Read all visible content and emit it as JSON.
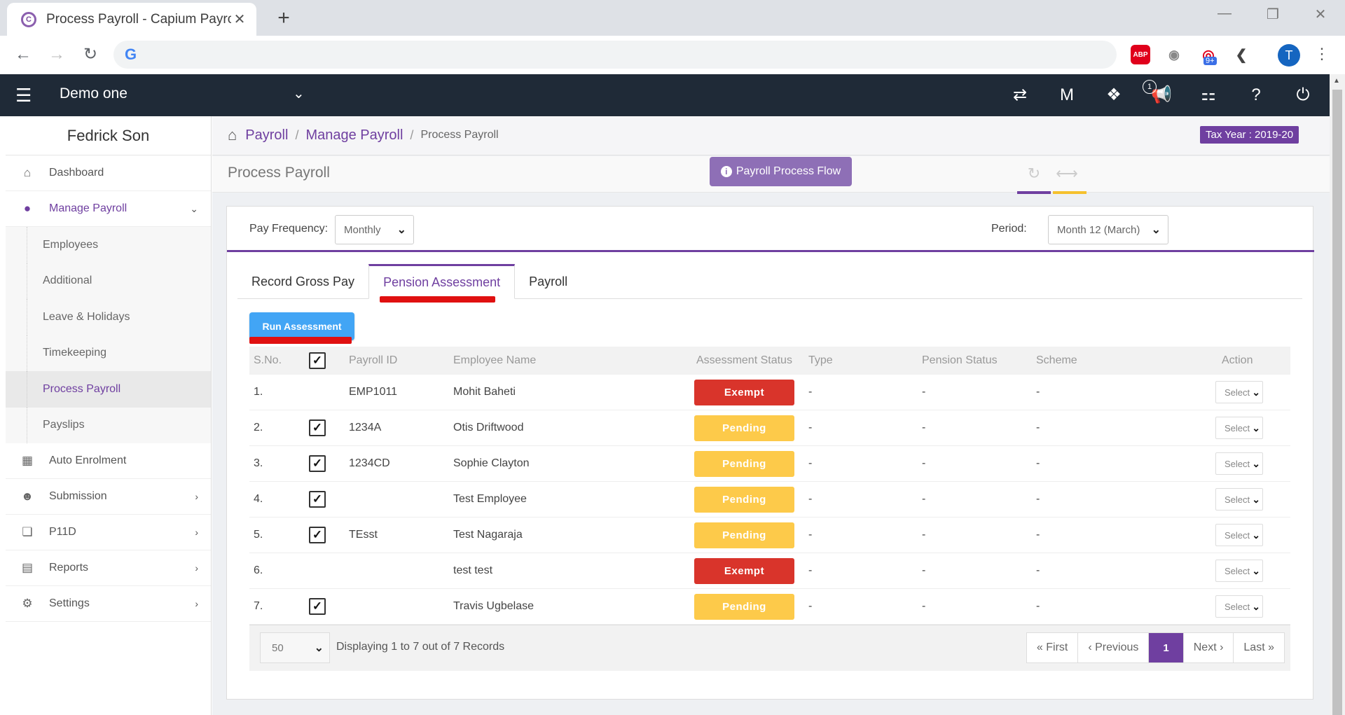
{
  "browser": {
    "tab_title": "Process Payroll - Capium Payroll",
    "tab_close": "✕",
    "new_tab": "+",
    "favicon_letter": "C",
    "google_letter": "G",
    "abp_label": "ABP",
    "ext_badge": "9+",
    "profile_initial": "T"
  },
  "header": {
    "company": "Demo one",
    "notification_count": "1"
  },
  "sidebar": {
    "user_name": "Fedrick Son",
    "items": [
      {
        "label": "Dashboard",
        "icon": "home-icon"
      },
      {
        "label": "Manage Payroll",
        "icon": "user-icon"
      },
      {
        "label": "Auto Enrolment",
        "icon": "grid-icon"
      },
      {
        "label": "Submission",
        "icon": "users-icon"
      },
      {
        "label": "P11D",
        "icon": "copy-icon"
      },
      {
        "label": "Reports",
        "icon": "report-icon"
      },
      {
        "label": "Settings",
        "icon": "gear-icon"
      }
    ],
    "sub_items": [
      "Employees",
      "Additional",
      "Leave & Holidays",
      "Timekeeping",
      "Process Payroll",
      "Payslips"
    ]
  },
  "breadcrumb": {
    "items": [
      "Payroll",
      "Manage Payroll"
    ],
    "current": "Process Payroll",
    "separator": "/"
  },
  "tax_year": "Tax Year : 2019-20",
  "page": {
    "title": "Process Payroll",
    "flow_button": "Payroll Process Flow"
  },
  "filters": {
    "pay_frequency_label": "Pay Frequency:",
    "pay_frequency_value": "Monthly",
    "period_label": "Period:",
    "period_value": "Month 12 (March)"
  },
  "tabs": [
    "Record Gross Pay",
    "Pension Assessment",
    "Payroll"
  ],
  "run_button": "Run Assessment",
  "table": {
    "headers": [
      "S.No.",
      "Payroll ID",
      "Employee Name",
      "Assessment Status",
      "Type",
      "Pension Status",
      "Scheme",
      "Action"
    ],
    "rows": [
      {
        "sno": "1.",
        "checked": false,
        "payroll_id": "EMP1011",
        "name": "Mohit Baheti",
        "status": "Exempt",
        "type": "-",
        "pension_status": "-",
        "scheme": "-",
        "action": "Select"
      },
      {
        "sno": "2.",
        "checked": true,
        "payroll_id": "1234A",
        "name": "Otis Driftwood",
        "status": "Pending",
        "type": "-",
        "pension_status": "-",
        "scheme": "-",
        "action": "Select"
      },
      {
        "sno": "3.",
        "checked": true,
        "payroll_id": "1234CD",
        "name": "Sophie Clayton",
        "status": "Pending",
        "type": "-",
        "pension_status": "-",
        "scheme": "-",
        "action": "Select"
      },
      {
        "sno": "4.",
        "checked": true,
        "payroll_id": "",
        "name": "Test Employee",
        "status": "Pending",
        "type": "-",
        "pension_status": "-",
        "scheme": "-",
        "action": "Select"
      },
      {
        "sno": "5.",
        "checked": true,
        "payroll_id": "TEsst",
        "name": "Test Nagaraja",
        "status": "Pending",
        "type": "-",
        "pension_status": "-",
        "scheme": "-",
        "action": "Select"
      },
      {
        "sno": "6.",
        "checked": false,
        "payroll_id": "",
        "name": "test test",
        "status": "Exempt",
        "type": "-",
        "pension_status": "-",
        "scheme": "-",
        "action": "Select"
      },
      {
        "sno": "7.",
        "checked": true,
        "payroll_id": "",
        "name": "Travis Ugbelase",
        "status": "Pending",
        "type": "-",
        "pension_status": "-",
        "scheme": "-",
        "action": "Select"
      }
    ]
  },
  "footer": {
    "page_size": "50",
    "info": "Displaying 1 to 7 out of 7 Records",
    "pager": {
      "first": "« First",
      "previous": "‹ Previous",
      "current": "1",
      "next": "Next ›",
      "last": "Last »"
    }
  },
  "colors": {
    "accent": "#6f3fa0",
    "header_bg": "#1f2a37",
    "exempt": "#d9342b",
    "pending": "#fdca4a",
    "run_button": "#42a5f5"
  }
}
